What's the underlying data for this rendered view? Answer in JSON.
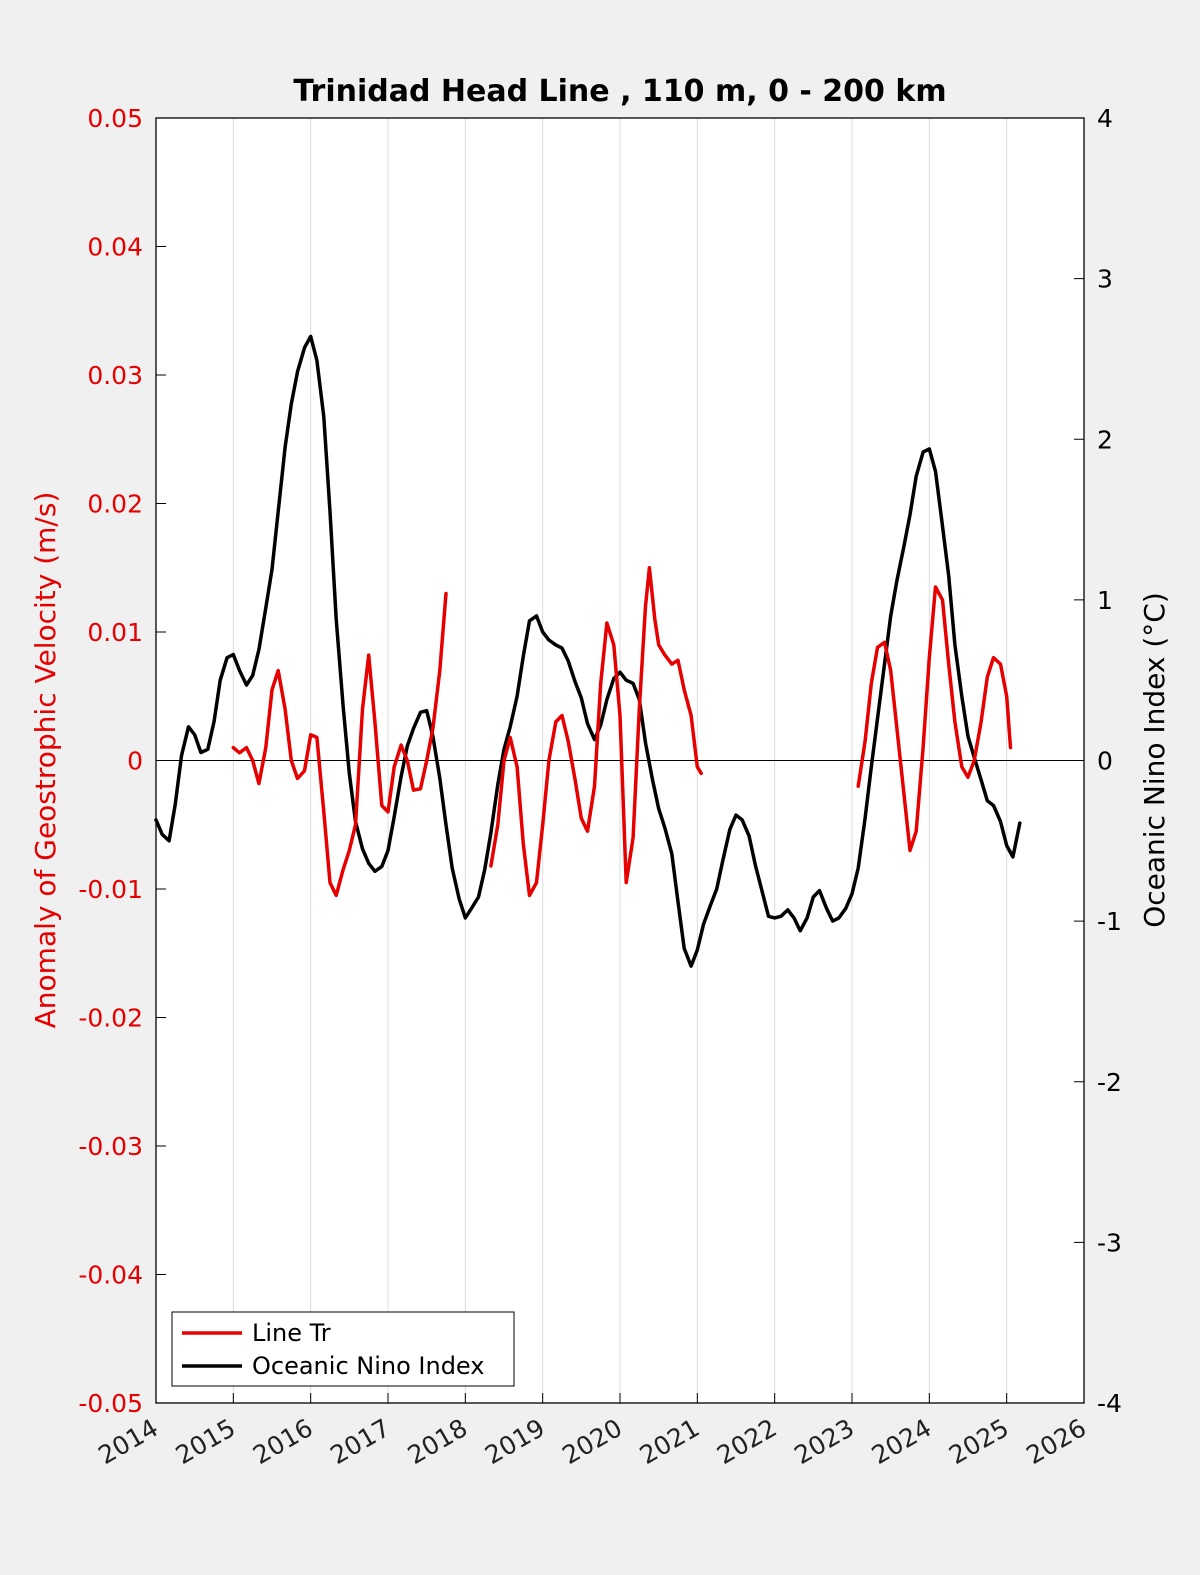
{
  "chart_data": {
    "type": "line",
    "title": "Trinidad Head Line , 110 m, 0 - 200 km",
    "x_ticks": [
      "2014",
      "2015",
      "2016",
      "2017",
      "2018",
      "2019",
      "2020",
      "2021",
      "2022",
      "2023",
      "2024",
      "2025",
      "2026"
    ],
    "xlim": [
      2014,
      2026
    ],
    "left_axis": {
      "label": "Anomaly of Geostrophic Velocity (m/s)",
      "ylim": [
        -0.05,
        0.05
      ],
      "ticks": [
        "-0.05",
        "-0.04",
        "-0.03",
        "-0.02",
        "-0.01",
        "0",
        "0.01",
        "0.02",
        "0.03",
        "0.04",
        "0.05"
      ],
      "color": "#e60000"
    },
    "right_axis": {
      "label": "Oceanic Nino Index (°C)",
      "ylim": [
        -4,
        4
      ],
      "ticks": [
        "-4",
        "-3",
        "-2",
        "-1",
        "0",
        "1",
        "2",
        "3",
        "4"
      ],
      "color": "#000000"
    },
    "grid": "vertical",
    "zero_line": true,
    "legend": {
      "placement": "bottom-left",
      "entries": [
        "Line Tr",
        "Oceanic Nino Index"
      ]
    },
    "series": [
      {
        "name": "Line Tr",
        "axis": "left",
        "color": "#e60000",
        "segments": [
          [
            [
              2015.0,
              0.001
            ],
            [
              2015.08,
              0.0006
            ],
            [
              2015.17,
              0.001
            ],
            [
              2015.25,
              0.0
            ],
            [
              2015.33,
              -0.0018
            ],
            [
              2015.42,
              0.001
            ],
            [
              2015.5,
              0.0055
            ],
            [
              2015.58,
              0.007
            ],
            [
              2015.67,
              0.004
            ],
            [
              2015.75,
              0.0
            ],
            [
              2015.83,
              -0.0014
            ],
            [
              2015.92,
              -0.0008
            ],
            [
              2016.0,
              0.002
            ],
            [
              2016.08,
              0.0018
            ],
            [
              2016.17,
              -0.004
            ],
            [
              2016.25,
              -0.0095
            ],
            [
              2016.33,
              -0.0105
            ],
            [
              2016.42,
              -0.0085
            ],
            [
              2016.5,
              -0.007
            ],
            [
              2016.58,
              -0.005
            ],
            [
              2016.67,
              0.004
            ],
            [
              2016.75,
              0.0082
            ],
            [
              2016.83,
              0.003
            ],
            [
              2016.92,
              -0.0035
            ],
            [
              2017.0,
              -0.004
            ],
            [
              2017.08,
              -0.0005
            ],
            [
              2017.17,
              0.0012
            ],
            [
              2017.25,
              0.0
            ],
            [
              2017.33,
              -0.0023
            ],
            [
              2017.42,
              -0.0022
            ],
            [
              2017.5,
              0.0
            ],
            [
              2017.58,
              0.0025
            ],
            [
              2017.67,
              0.007
            ],
            [
              2017.75,
              0.013
            ]
          ],
          [
            [
              2018.33,
              -0.0082
            ],
            [
              2018.42,
              -0.005
            ],
            [
              2018.5,
              0.0
            ],
            [
              2018.58,
              0.0018
            ],
            [
              2018.67,
              -0.0005
            ],
            [
              2018.75,
              -0.0065
            ],
            [
              2018.83,
              -0.0105
            ],
            [
              2018.92,
              -0.0095
            ],
            [
              2019.0,
              -0.005
            ],
            [
              2019.08,
              0.0
            ],
            [
              2019.17,
              0.003
            ],
            [
              2019.25,
              0.0035
            ],
            [
              2019.33,
              0.0015
            ],
            [
              2019.42,
              -0.0015
            ],
            [
              2019.5,
              -0.0045
            ],
            [
              2019.58,
              -0.0055
            ],
            [
              2019.67,
              -0.002
            ],
            [
              2019.75,
              0.006
            ],
            [
              2019.83,
              0.0107
            ],
            [
              2019.92,
              0.009
            ],
            [
              2020.0,
              0.0035
            ],
            [
              2020.08,
              -0.0095
            ],
            [
              2020.17,
              -0.006
            ],
            [
              2020.25,
              0.004
            ],
            [
              2020.33,
              0.012
            ],
            [
              2020.38,
              0.015
            ],
            [
              2020.45,
              0.011
            ],
            [
              2020.5,
              0.009
            ],
            [
              2020.58,
              0.0082
            ],
            [
              2020.67,
              0.0075
            ],
            [
              2020.75,
              0.0078
            ],
            [
              2020.83,
              0.0055
            ],
            [
              2020.92,
              0.0035
            ],
            [
              2021.0,
              -0.0005
            ],
            [
              2021.05,
              -0.001
            ]
          ],
          [
            [
              2023.08,
              -0.002
            ],
            [
              2023.17,
              0.0015
            ],
            [
              2023.25,
              0.006
            ],
            [
              2023.33,
              0.0088
            ],
            [
              2023.42,
              0.0092
            ],
            [
              2023.5,
              0.007
            ],
            [
              2023.58,
              0.0025
            ],
            [
              2023.67,
              -0.0025
            ],
            [
              2023.75,
              -0.007
            ],
            [
              2023.83,
              -0.0055
            ],
            [
              2023.92,
              0.001
            ],
            [
              2024.0,
              0.008
            ],
            [
              2024.08,
              0.0135
            ],
            [
              2024.17,
              0.0125
            ],
            [
              2024.25,
              0.0075
            ],
            [
              2024.33,
              0.003
            ],
            [
              2024.42,
              -0.0005
            ],
            [
              2024.5,
              -0.0013
            ],
            [
              2024.58,
              0.0
            ],
            [
              2024.67,
              0.003
            ],
            [
              2024.75,
              0.0065
            ],
            [
              2024.83,
              0.008
            ],
            [
              2024.92,
              0.0075
            ],
            [
              2025.0,
              0.005
            ],
            [
              2025.05,
              0.001
            ]
          ]
        ]
      },
      {
        "name": "Oceanic Nino Index",
        "axis": "right",
        "color": "#000000",
        "segments": [
          [
            [
              2014.0,
              -0.37
            ],
            [
              2014.08,
              -0.46
            ],
            [
              2014.17,
              -0.5
            ],
            [
              2014.25,
              -0.27
            ],
            [
              2014.33,
              0.03
            ],
            [
              2014.42,
              0.21
            ],
            [
              2014.5,
              0.16
            ],
            [
              2014.58,
              0.05
            ],
            [
              2014.67,
              0.07
            ],
            [
              2014.75,
              0.24
            ],
            [
              2014.83,
              0.5
            ],
            [
              2014.92,
              0.64
            ],
            [
              2015.0,
              0.66
            ],
            [
              2015.08,
              0.56
            ],
            [
              2015.17,
              0.47
            ],
            [
              2015.25,
              0.53
            ],
            [
              2015.33,
              0.69
            ],
            [
              2015.42,
              0.95
            ],
            [
              2015.5,
              1.19
            ],
            [
              2015.58,
              1.55
            ],
            [
              2015.67,
              1.95
            ],
            [
              2015.75,
              2.22
            ],
            [
              2015.83,
              2.42
            ],
            [
              2015.92,
              2.57
            ],
            [
              2016.0,
              2.64
            ],
            [
              2016.08,
              2.49
            ],
            [
              2016.17,
              2.14
            ],
            [
              2016.25,
              1.55
            ],
            [
              2016.33,
              0.88
            ],
            [
              2016.42,
              0.34
            ],
            [
              2016.5,
              -0.08
            ],
            [
              2016.58,
              -0.38
            ],
            [
              2016.67,
              -0.55
            ],
            [
              2016.75,
              -0.64
            ],
            [
              2016.83,
              -0.69
            ],
            [
              2016.92,
              -0.66
            ],
            [
              2017.0,
              -0.56
            ],
            [
              2017.08,
              -0.35
            ],
            [
              2017.17,
              -0.1
            ],
            [
              2017.25,
              0.09
            ],
            [
              2017.33,
              0.2
            ],
            [
              2017.42,
              0.3
            ],
            [
              2017.5,
              0.31
            ],
            [
              2017.58,
              0.15
            ],
            [
              2017.67,
              -0.11
            ],
            [
              2017.75,
              -0.4
            ],
            [
              2017.83,
              -0.67
            ],
            [
              2017.92,
              -0.86
            ],
            [
              2018.0,
              -0.98
            ],
            [
              2018.08,
              -0.92
            ],
            [
              2018.17,
              -0.85
            ],
            [
              2018.25,
              -0.68
            ],
            [
              2018.33,
              -0.45
            ],
            [
              2018.42,
              -0.15
            ],
            [
              2018.5,
              0.07
            ],
            [
              2018.58,
              0.21
            ],
            [
              2018.67,
              0.4
            ],
            [
              2018.75,
              0.65
            ],
            [
              2018.83,
              0.87
            ],
            [
              2018.92,
              0.9
            ],
            [
              2019.0,
              0.8
            ],
            [
              2019.08,
              0.75
            ],
            [
              2019.17,
              0.72
            ],
            [
              2019.25,
              0.7
            ],
            [
              2019.33,
              0.62
            ],
            [
              2019.42,
              0.49
            ],
            [
              2019.5,
              0.39
            ],
            [
              2019.58,
              0.23
            ],
            [
              2019.67,
              0.13
            ],
            [
              2019.75,
              0.22
            ],
            [
              2019.83,
              0.38
            ],
            [
              2019.92,
              0.51
            ],
            [
              2020.0,
              0.55
            ],
            [
              2020.08,
              0.5
            ],
            [
              2020.17,
              0.48
            ],
            [
              2020.25,
              0.38
            ],
            [
              2020.33,
              0.11
            ],
            [
              2020.42,
              -0.12
            ],
            [
              2020.5,
              -0.3
            ],
            [
              2020.58,
              -0.42
            ],
            [
              2020.67,
              -0.58
            ],
            [
              2020.75,
              -0.88
            ],
            [
              2020.83,
              -1.17
            ],
            [
              2020.92,
              -1.28
            ],
            [
              2021.0,
              -1.18
            ],
            [
              2021.08,
              -1.02
            ],
            [
              2021.17,
              -0.9
            ],
            [
              2021.25,
              -0.8
            ],
            [
              2021.33,
              -0.62
            ],
            [
              2021.42,
              -0.43
            ],
            [
              2021.5,
              -0.34
            ],
            [
              2021.58,
              -0.37
            ],
            [
              2021.67,
              -0.47
            ],
            [
              2021.75,
              -0.65
            ],
            [
              2021.83,
              -0.8
            ],
            [
              2021.92,
              -0.97
            ],
            [
              2022.0,
              -0.98
            ],
            [
              2022.08,
              -0.97
            ],
            [
              2022.17,
              -0.93
            ],
            [
              2022.25,
              -0.98
            ],
            [
              2022.33,
              -1.06
            ],
            [
              2022.42,
              -0.98
            ],
            [
              2022.5,
              -0.85
            ],
            [
              2022.58,
              -0.81
            ],
            [
              2022.67,
              -0.92
            ],
            [
              2022.75,
              -1.0
            ],
            [
              2022.83,
              -0.98
            ],
            [
              2022.92,
              -0.92
            ],
            [
              2023.0,
              -0.83
            ],
            [
              2023.08,
              -0.67
            ],
            [
              2023.17,
              -0.36
            ],
            [
              2023.25,
              -0.04
            ],
            [
              2023.33,
              0.26
            ],
            [
              2023.42,
              0.6
            ],
            [
              2023.5,
              0.9
            ],
            [
              2023.58,
              1.12
            ],
            [
              2023.67,
              1.33
            ],
            [
              2023.75,
              1.53
            ],
            [
              2023.83,
              1.77
            ],
            [
              2023.92,
              1.92
            ],
            [
              2024.0,
              1.94
            ],
            [
              2024.08,
              1.8
            ],
            [
              2024.17,
              1.46
            ],
            [
              2024.25,
              1.15
            ],
            [
              2024.33,
              0.72
            ],
            [
              2024.42,
              0.4
            ],
            [
              2024.5,
              0.15
            ],
            [
              2024.58,
              0.02
            ],
            [
              2024.67,
              -0.12
            ],
            [
              2024.75,
              -0.25
            ],
            [
              2024.83,
              -0.28
            ],
            [
              2024.92,
              -0.38
            ],
            [
              2025.0,
              -0.53
            ],
            [
              2025.08,
              -0.6
            ],
            [
              2025.17,
              -0.39
            ]
          ]
        ]
      }
    ]
  }
}
